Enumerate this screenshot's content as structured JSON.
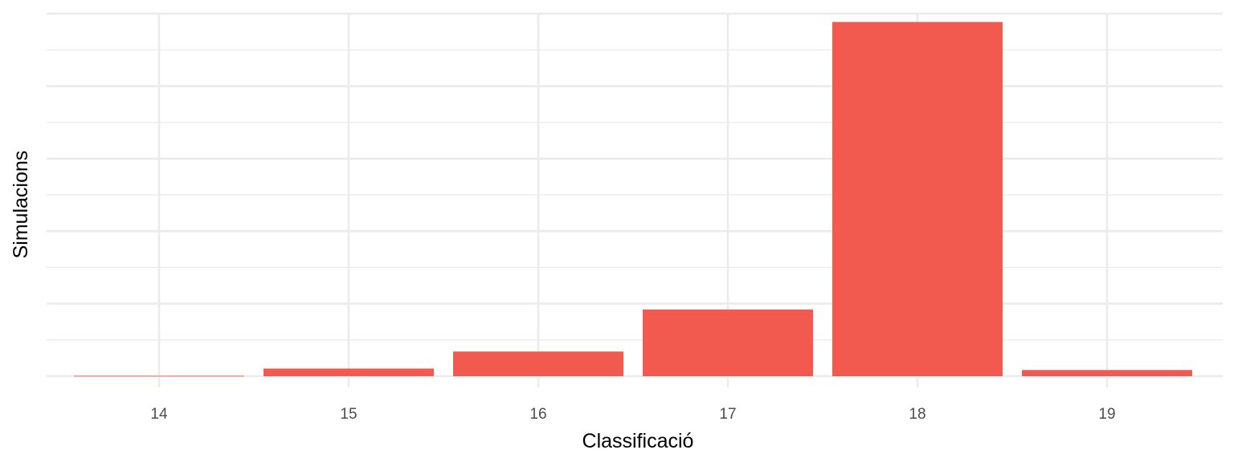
{
  "chart_data": {
    "type": "bar",
    "categories": [
      "14",
      "15",
      "16",
      "17",
      "18",
      "19"
    ],
    "values": [
      1,
      21,
      68,
      184,
      977,
      17
    ],
    "xlabel": "Classificació",
    "ylabel": "Simulacions",
    "ylim": [
      0,
      1000
    ],
    "ytick_labels_shown": false,
    "grid": true,
    "bar_color": "#F25A4F",
    "legend": "none"
  }
}
